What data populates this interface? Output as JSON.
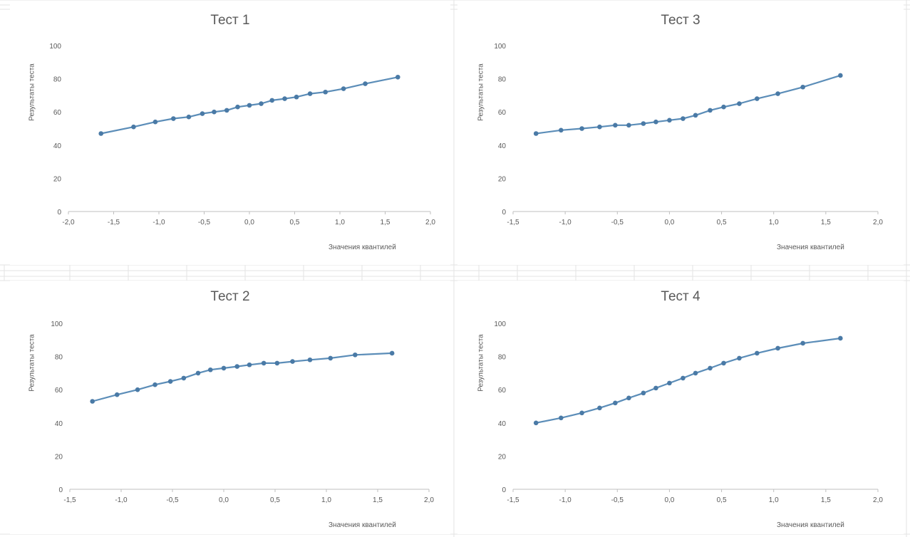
{
  "theme": {
    "line_color": "#5b8db8",
    "marker_color": "#4a7aa6",
    "axis_color": "#bfbfbf",
    "text_color": "#595959"
  },
  "chart_data": [
    {
      "type": "line",
      "title": "Тест 1",
      "xlabel": "Значения квантилей",
      "ylabel": "Результаты теста",
      "xlim": [
        -2.0,
        2.0
      ],
      "ylim": [
        0,
        100
      ],
      "xticks": [
        "-2,0",
        "-1,5",
        "-1,0",
        "-0,5",
        "0,0",
        "0,5",
        "1,0",
        "1,5",
        "2,0"
      ],
      "yticks": [
        "0",
        "20",
        "40",
        "60",
        "80",
        "100"
      ],
      "x": [
        -1.64,
        -1.28,
        -1.04,
        -0.84,
        -0.67,
        -0.52,
        -0.39,
        -0.25,
        -0.13,
        0.0,
        0.13,
        0.25,
        0.39,
        0.52,
        0.67,
        0.84,
        1.04,
        1.28,
        1.64
      ],
      "y": [
        47,
        51,
        54,
        56,
        57,
        59,
        60,
        61,
        63,
        64,
        65,
        67,
        68,
        69,
        71,
        72,
        74,
        77,
        81
      ]
    },
    {
      "type": "line",
      "title": "Тест 3",
      "xlabel": "Значения квантилей",
      "ylabel": "Результаты теста",
      "xlim": [
        -1.5,
        2.0
      ],
      "ylim": [
        0,
        100
      ],
      "xticks": [
        "-1,5",
        "-1,0",
        "-0,5",
        "0,0",
        "0,5",
        "1,0",
        "1,5",
        "2,0"
      ],
      "yticks": [
        "0",
        "20",
        "40",
        "60",
        "80",
        "100"
      ],
      "x": [
        -1.28,
        -1.04,
        -0.84,
        -0.67,
        -0.52,
        -0.39,
        -0.25,
        -0.13,
        0.0,
        0.13,
        0.25,
        0.39,
        0.52,
        0.67,
        0.84,
        1.04,
        1.28,
        1.64
      ],
      "y": [
        47,
        49,
        50,
        51,
        52,
        52,
        53,
        54,
        55,
        56,
        58,
        61,
        63,
        65,
        68,
        71,
        75,
        82
      ]
    },
    {
      "type": "line",
      "title": "Тест 2",
      "xlabel": "Значения квантилей",
      "ylabel": "Результаты теста",
      "xlim": [
        -1.5,
        2.0
      ],
      "ylim": [
        0,
        100
      ],
      "xticks": [
        "-1,5",
        "-1,0",
        "-0,5",
        "0,0",
        "0,5",
        "1,0",
        "1,5",
        "2,0"
      ],
      "yticks": [
        "0",
        "20",
        "40",
        "60",
        "80",
        "100"
      ],
      "x": [
        -1.28,
        -1.04,
        -0.84,
        -0.67,
        -0.52,
        -0.39,
        -0.25,
        -0.13,
        0.0,
        0.13,
        0.25,
        0.39,
        0.52,
        0.67,
        0.84,
        1.04,
        1.28,
        1.64
      ],
      "y": [
        53,
        57,
        60,
        63,
        65,
        67,
        70,
        72,
        73,
        74,
        75,
        76,
        76,
        77,
        78,
        79,
        81,
        82
      ]
    },
    {
      "type": "line",
      "title": "Тест 4",
      "xlabel": "Значения квантилей",
      "ylabel": "Результаты теста",
      "xlim": [
        -1.5,
        2.0
      ],
      "ylim": [
        0,
        100
      ],
      "xticks": [
        "-1,5",
        "-1,0",
        "-0,5",
        "0,0",
        "0,5",
        "1,0",
        "1,5",
        "2,0"
      ],
      "yticks": [
        "0",
        "20",
        "40",
        "60",
        "80",
        "100"
      ],
      "x": [
        -1.28,
        -1.04,
        -0.84,
        -0.67,
        -0.52,
        -0.39,
        -0.25,
        -0.13,
        0.0,
        0.13,
        0.25,
        0.39,
        0.52,
        0.67,
        0.84,
        1.04,
        1.28,
        1.64
      ],
      "y": [
        40,
        43,
        46,
        49,
        52,
        55,
        58,
        61,
        64,
        67,
        70,
        73,
        76,
        79,
        82,
        85,
        88,
        91
      ]
    }
  ]
}
